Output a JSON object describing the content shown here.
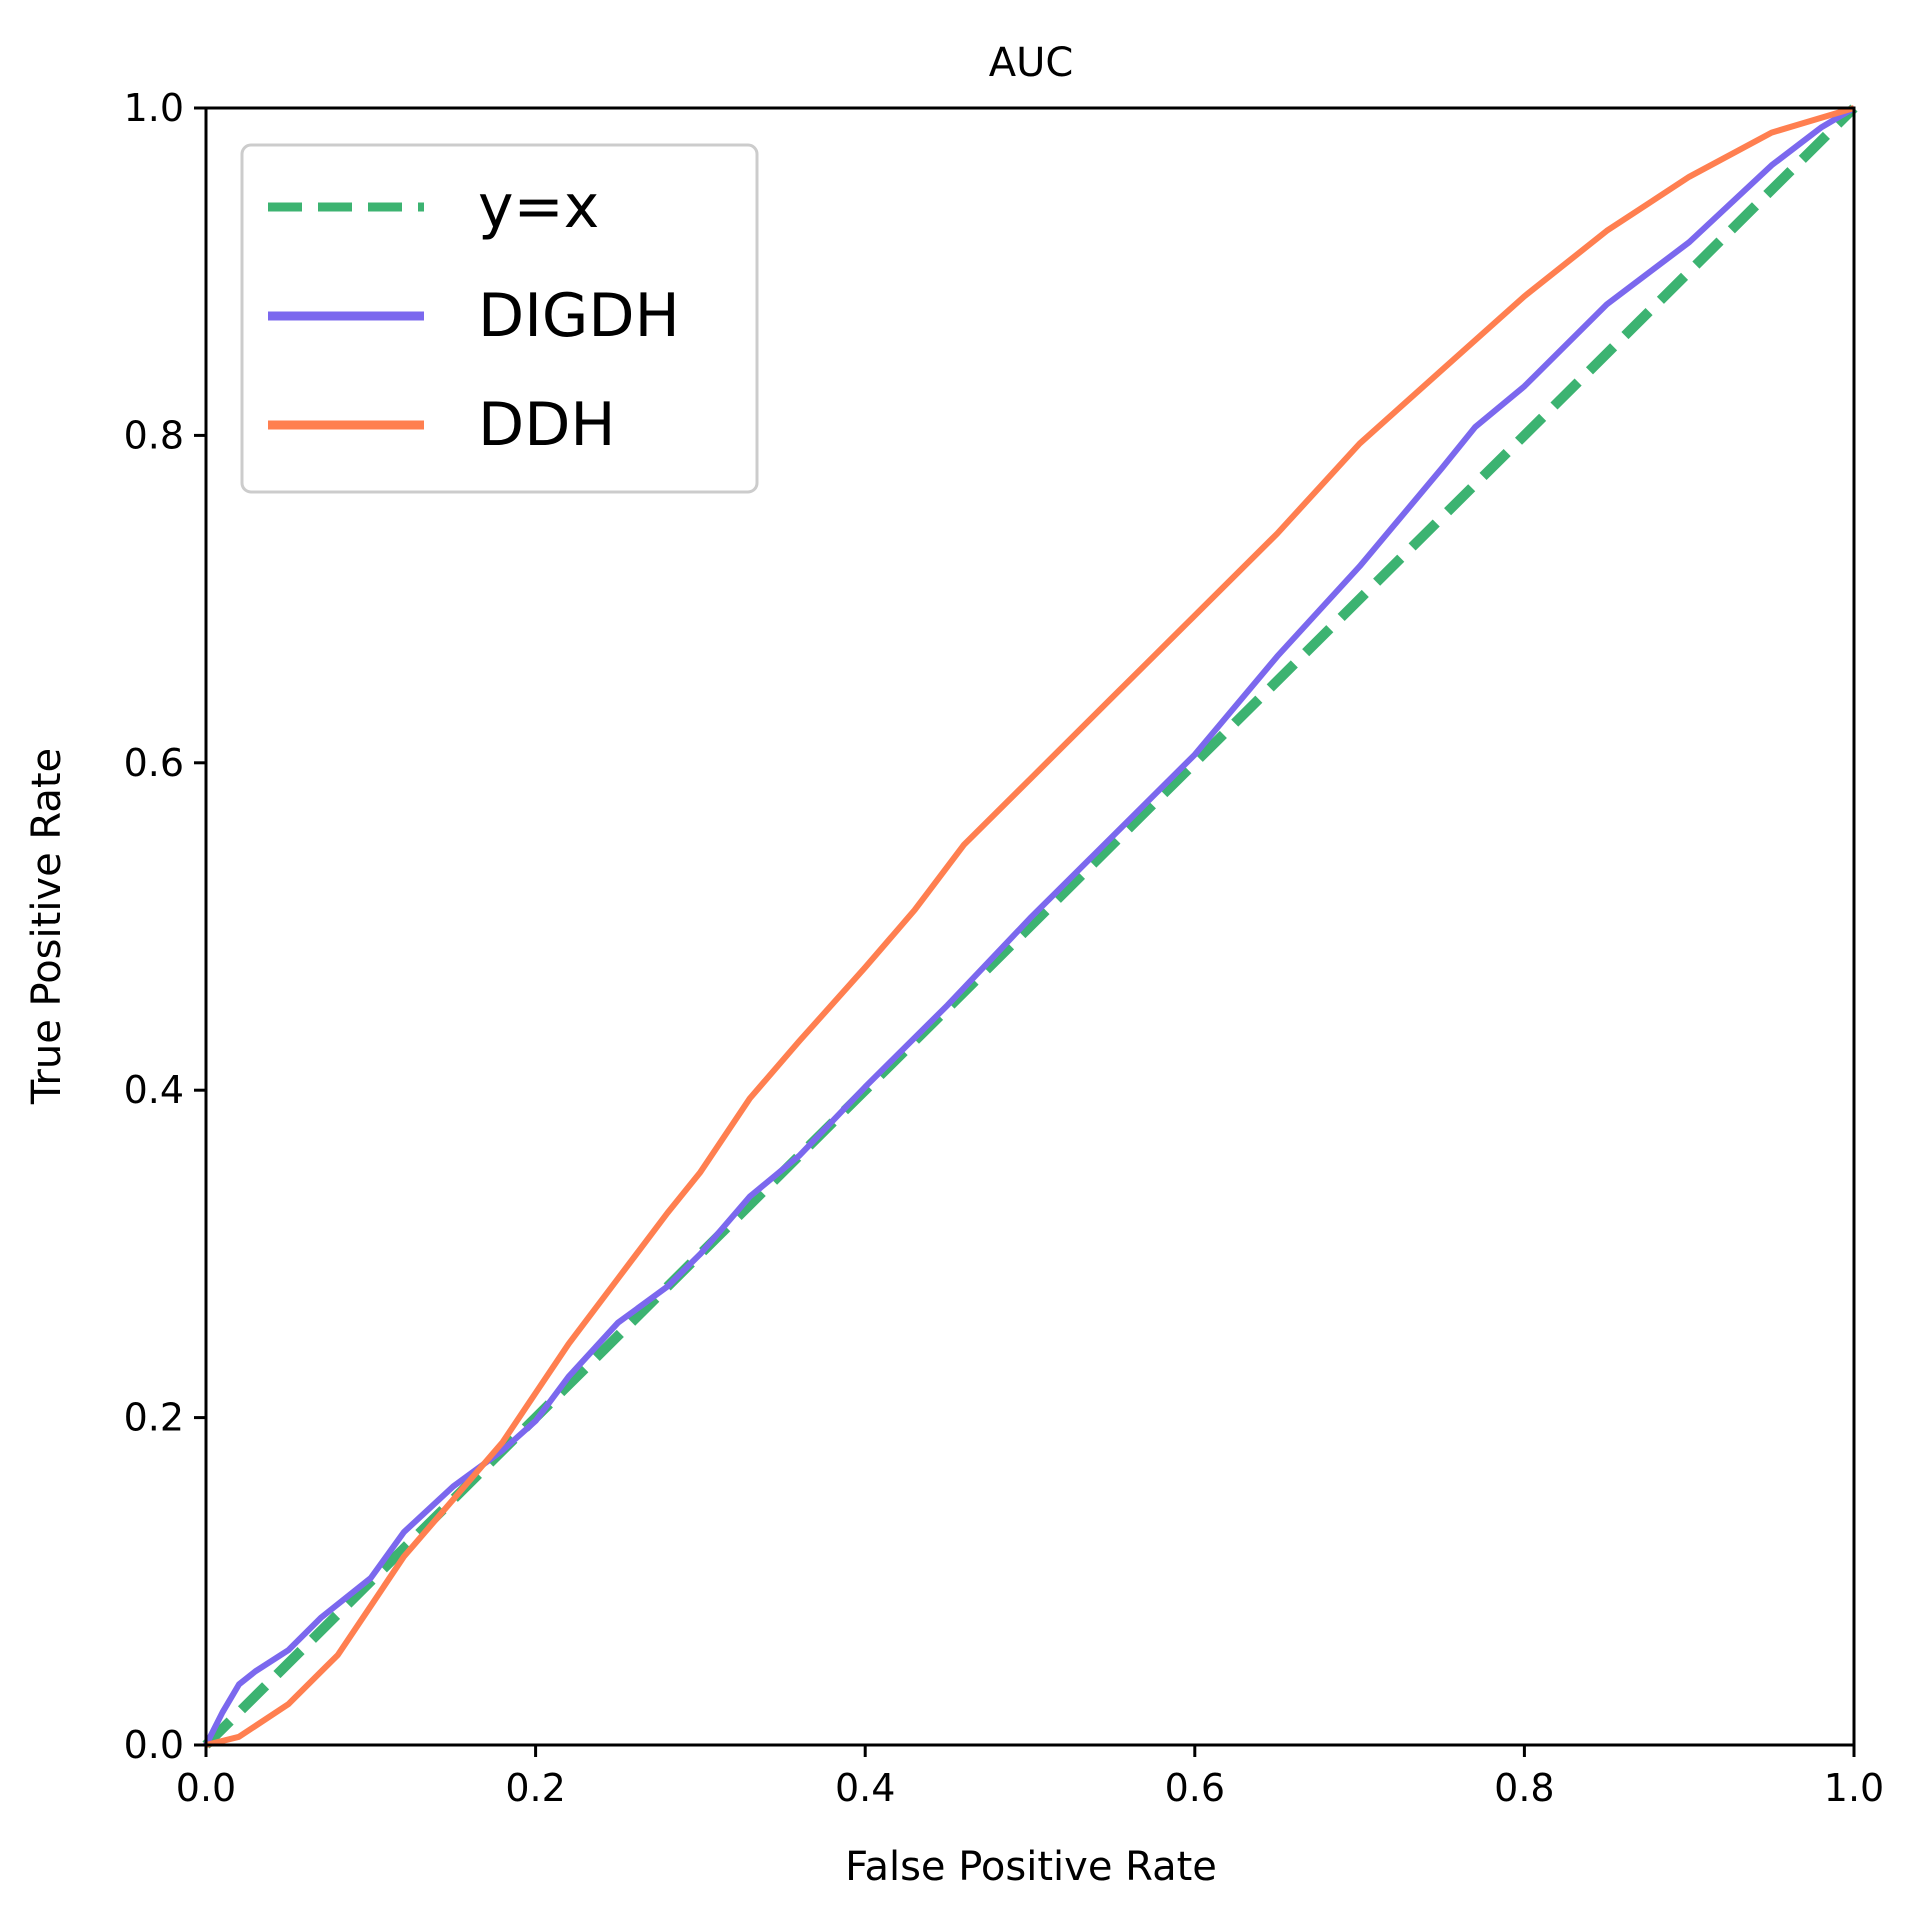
{
  "chart_data": {
    "type": "line",
    "title": "AUC",
    "xlabel": "False Positive Rate",
    "ylabel": "True Positive Rate",
    "xlim": [
      0.0,
      1.0
    ],
    "ylim": [
      0.0,
      1.0
    ],
    "grid": false,
    "legend_position": "top-left",
    "x_ticks": [
      "0.0",
      "0.2",
      "0.4",
      "0.6",
      "0.8",
      "1.0"
    ],
    "y_ticks": [
      "0.0",
      "0.2",
      "0.4",
      "0.6",
      "0.8",
      "1.0"
    ],
    "series": [
      {
        "name": "y=x",
        "color": "#3cb371",
        "style": "dashed",
        "points": [
          [
            0.0,
            0.0
          ],
          [
            1.0,
            1.0
          ]
        ]
      },
      {
        "name": "DIGDH",
        "color": "#7b68ee",
        "style": "solid",
        "points": [
          [
            0.0,
            0.0
          ],
          [
            0.01,
            0.02
          ],
          [
            0.02,
            0.037
          ],
          [
            0.03,
            0.045
          ],
          [
            0.05,
            0.058
          ],
          [
            0.07,
            0.078
          ],
          [
            0.1,
            0.102
          ],
          [
            0.12,
            0.13
          ],
          [
            0.15,
            0.158
          ],
          [
            0.18,
            0.18
          ],
          [
            0.2,
            0.198
          ],
          [
            0.22,
            0.225
          ],
          [
            0.25,
            0.258
          ],
          [
            0.28,
            0.28
          ],
          [
            0.3,
            0.3
          ],
          [
            0.33,
            0.335
          ],
          [
            0.36,
            0.36
          ],
          [
            0.4,
            0.402
          ],
          [
            0.45,
            0.452
          ],
          [
            0.5,
            0.505
          ],
          [
            0.55,
            0.555
          ],
          [
            0.6,
            0.605
          ],
          [
            0.65,
            0.665
          ],
          [
            0.7,
            0.72
          ],
          [
            0.75,
            0.78
          ],
          [
            0.77,
            0.805
          ],
          [
            0.8,
            0.83
          ],
          [
            0.85,
            0.88
          ],
          [
            0.9,
            0.918
          ],
          [
            0.95,
            0.965
          ],
          [
            0.98,
            0.988
          ],
          [
            1.0,
            1.0
          ]
        ]
      },
      {
        "name": "DDH",
        "color": "#ff7f50",
        "style": "solid",
        "points": [
          [
            0.0,
            0.0
          ],
          [
            0.02,
            0.005
          ],
          [
            0.05,
            0.025
          ],
          [
            0.07,
            0.045
          ],
          [
            0.08,
            0.055
          ],
          [
            0.1,
            0.085
          ],
          [
            0.12,
            0.115
          ],
          [
            0.15,
            0.15
          ],
          [
            0.18,
            0.185
          ],
          [
            0.2,
            0.215
          ],
          [
            0.22,
            0.245
          ],
          [
            0.25,
            0.285
          ],
          [
            0.28,
            0.325
          ],
          [
            0.3,
            0.35
          ],
          [
            0.33,
            0.395
          ],
          [
            0.36,
            0.43
          ],
          [
            0.4,
            0.475
          ],
          [
            0.43,
            0.51
          ],
          [
            0.46,
            0.55
          ],
          [
            0.5,
            0.59
          ],
          [
            0.55,
            0.64
          ],
          [
            0.6,
            0.69
          ],
          [
            0.65,
            0.74
          ],
          [
            0.7,
            0.795
          ],
          [
            0.75,
            0.84
          ],
          [
            0.8,
            0.885
          ],
          [
            0.85,
            0.925
          ],
          [
            0.9,
            0.958
          ],
          [
            0.95,
            0.985
          ],
          [
            1.0,
            1.0
          ]
        ]
      }
    ]
  }
}
